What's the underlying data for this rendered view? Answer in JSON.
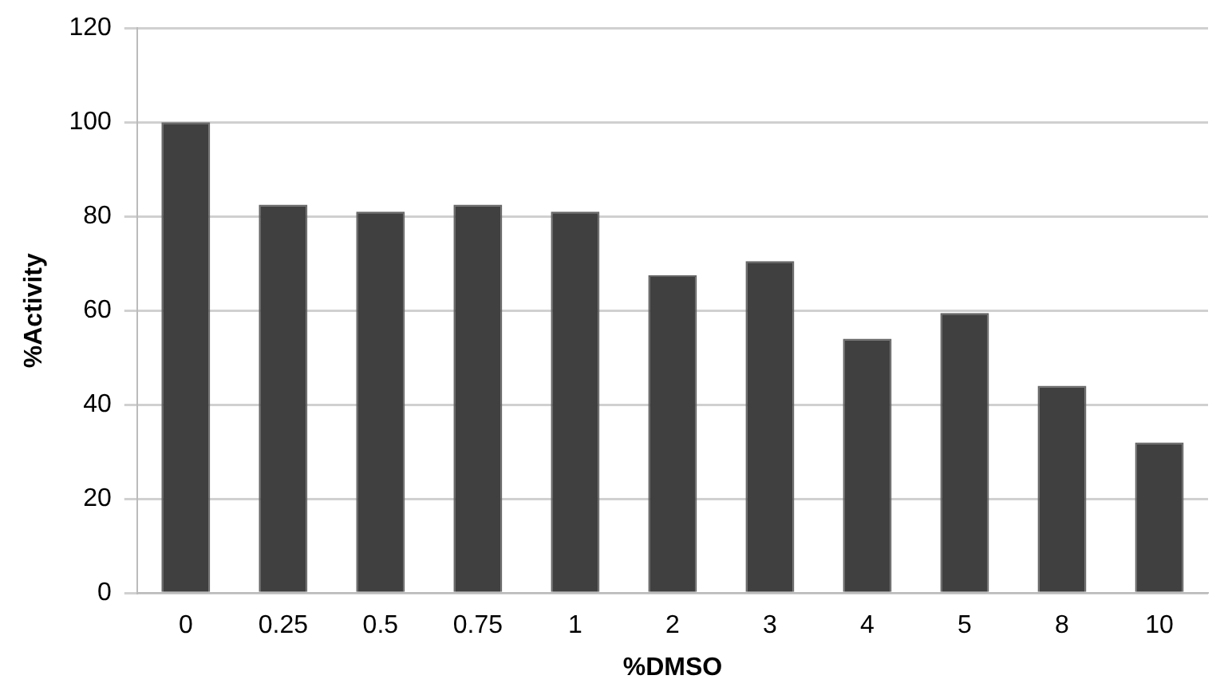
{
  "chart_data": {
    "type": "bar",
    "xlabel": "%DMSO",
    "ylabel": "%Activity",
    "categories": [
      "0",
      "0.25",
      "0.5",
      "0.75",
      "1",
      "2",
      "3",
      "4",
      "5",
      "8",
      "10"
    ],
    "values": [
      100,
      82.5,
      81,
      82.5,
      81,
      67.5,
      70.5,
      54,
      59.5,
      44,
      32
    ],
    "color": "#404040",
    "ylim": [
      0,
      120
    ],
    "yticks": [
      0,
      20,
      40,
      60,
      80,
      100,
      120
    ],
    "grid": "y"
  }
}
